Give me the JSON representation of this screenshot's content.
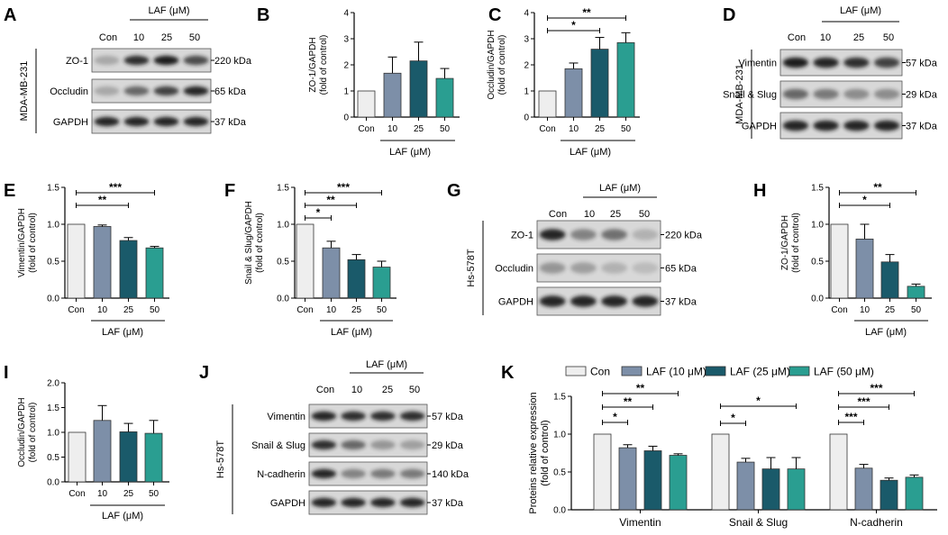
{
  "colors": {
    "con": "#eeeeee",
    "laf10": "#7d8fa8",
    "laf25": "#1a5a6a",
    "laf50": "#2a9e91",
    "blot_bg": "#d8d8d8",
    "band": "#1a1a1a"
  },
  "panels": {
    "A": {
      "letter": "A",
      "cell_line": "MDA-MB-231",
      "header": "LAF (μM)",
      "lanes": [
        "Con",
        "10",
        "25",
        "50"
      ],
      "rows": [
        {
          "label": "ZO-1",
          "kda": "220 kDa",
          "intensity": [
            0.25,
            0.9,
            1.0,
            0.75
          ]
        },
        {
          "label": "Occludin",
          "kda": "65 kDa",
          "intensity": [
            0.25,
            0.6,
            0.8,
            0.95
          ]
        },
        {
          "label": "GAPDH",
          "kda": "37 kDa",
          "intensity": [
            0.95,
            0.95,
            0.95,
            0.95
          ]
        }
      ]
    },
    "B": {
      "letter": "B"
    },
    "C": {
      "letter": "C"
    },
    "D": {
      "letter": "D",
      "cell_line": "MDA-MB-231",
      "header": "LAF (μM)",
      "lanes": [
        "Con",
        "10",
        "25",
        "50"
      ],
      "rows": [
        {
          "label": "Vimentin",
          "kda": "57 kDa",
          "intensity": [
            1.0,
            0.95,
            0.9,
            0.8
          ]
        },
        {
          "label": "Snail & Slug",
          "kda": "29 kDa",
          "intensity": [
            0.6,
            0.5,
            0.4,
            0.4
          ]
        },
        {
          "label": "GAPDH",
          "kda": "37 kDa",
          "intensity": [
            0.95,
            0.95,
            0.95,
            0.95
          ]
        }
      ]
    },
    "E": {
      "letter": "E"
    },
    "F": {
      "letter": "F"
    },
    "G": {
      "letter": "G",
      "cell_line": "Hs-578T",
      "header": "LAF (μM)",
      "lanes": [
        "Con",
        "10",
        "25",
        "50"
      ],
      "rows": [
        {
          "label": "ZO-1",
          "kda": "220 kDa",
          "intensity": [
            0.95,
            0.45,
            0.55,
            0.2
          ]
        },
        {
          "label": "Occludin",
          "kda": "65 kDa",
          "intensity": [
            0.35,
            0.3,
            0.2,
            0.15
          ]
        },
        {
          "label": "GAPDH",
          "kda": "37 kDa",
          "intensity": [
            0.95,
            0.95,
            0.95,
            0.95
          ]
        }
      ]
    },
    "H": {
      "letter": "H"
    },
    "I": {
      "letter": "I"
    },
    "J": {
      "letter": "J",
      "cell_line": "Hs-578T",
      "header": "LAF (μM)",
      "lanes": [
        "Con",
        "10",
        "25",
        "50"
      ],
      "rows": [
        {
          "label": "Vimentin",
          "kda": "57 kDa",
          "intensity": [
            0.95,
            0.9,
            0.9,
            0.9
          ]
        },
        {
          "label": "Snail & Slug",
          "kda": "29 kDa",
          "intensity": [
            0.9,
            0.6,
            0.35,
            0.3
          ]
        },
        {
          "label": "N-cadherin",
          "kda": "140 kDa",
          "intensity": [
            0.95,
            0.45,
            0.5,
            0.5
          ]
        },
        {
          "label": "GAPDH",
          "kda": "37 kDa",
          "intensity": [
            0.95,
            0.95,
            0.95,
            0.95
          ]
        }
      ]
    },
    "K": {
      "letter": "K"
    }
  },
  "chart_data": [
    {
      "id": "B",
      "type": "bar",
      "categories": [
        "Con",
        "10",
        "25",
        "50"
      ],
      "values": [
        1.0,
        1.68,
        2.15,
        1.48
      ],
      "errors": [
        0,
        0.62,
        0.72,
        0.38
      ],
      "ylabel": "ZO-1/GAPDH\n(fold of control)",
      "xlabel": "LAF (μM)",
      "ylim": [
        0,
        4
      ],
      "yticks": [
        "0",
        "1",
        "2",
        "3",
        "4"
      ],
      "significance": []
    },
    {
      "id": "C",
      "type": "bar",
      "categories": [
        "Con",
        "10",
        "25",
        "50"
      ],
      "values": [
        1.0,
        1.85,
        2.6,
        2.85
      ],
      "errors": [
        0,
        0.22,
        0.45,
        0.38
      ],
      "ylabel": "Occludin/GAPDH\n(fold of control)",
      "xlabel": "LAF (μM)",
      "ylim": [
        0,
        4
      ],
      "yticks": [
        "0",
        "1",
        "2",
        "3",
        "4"
      ],
      "significance": [
        {
          "from": 0,
          "to": 2,
          "label": "*"
        },
        {
          "from": 0,
          "to": 3,
          "label": "**"
        }
      ]
    },
    {
      "id": "E",
      "type": "bar",
      "categories": [
        "Con",
        "10",
        "25",
        "50"
      ],
      "values": [
        1.0,
        0.97,
        0.78,
        0.68
      ],
      "errors": [
        0,
        0.02,
        0.04,
        0.02
      ],
      "ylabel": "Vimentin/GAPDH\n(fold of control)",
      "xlabel": "LAF (μM)",
      "ylim": [
        0,
        1.5
      ],
      "yticks": [
        "0.0",
        "0.5",
        "1.0",
        "1.5"
      ],
      "significance": [
        {
          "from": 0,
          "to": 2,
          "label": "**"
        },
        {
          "from": 0,
          "to": 3,
          "label": "***"
        }
      ]
    },
    {
      "id": "F",
      "type": "bar",
      "categories": [
        "Con",
        "10",
        "25",
        "50"
      ],
      "values": [
        1.0,
        0.68,
        0.52,
        0.42
      ],
      "errors": [
        0,
        0.09,
        0.07,
        0.08
      ],
      "ylabel": "Snail & Slug/GAPDH\n(fold of control)",
      "xlabel": "LAF (μM)",
      "ylim": [
        0,
        1.5
      ],
      "yticks": [
        "0.0",
        "0.5",
        "1.0",
        "1.5"
      ],
      "significance": [
        {
          "from": 0,
          "to": 1,
          "label": "*"
        },
        {
          "from": 0,
          "to": 2,
          "label": "**"
        },
        {
          "from": 0,
          "to": 3,
          "label": "***"
        }
      ]
    },
    {
      "id": "H",
      "type": "bar",
      "categories": [
        "Con",
        "10",
        "25",
        "50"
      ],
      "values": [
        1.0,
        0.8,
        0.49,
        0.16
      ],
      "errors": [
        0,
        0.2,
        0.1,
        0.03
      ],
      "ylabel": "ZO-1/GAPDH\n(fold of control)",
      "xlabel": "LAF (μM)",
      "ylim": [
        0,
        1.5
      ],
      "yticks": [
        "0.0",
        "0.5",
        "1.0",
        "1.5"
      ],
      "significance": [
        {
          "from": 0,
          "to": 2,
          "label": "*"
        },
        {
          "from": 0,
          "to": 3,
          "label": "**"
        }
      ]
    },
    {
      "id": "I",
      "type": "bar",
      "categories": [
        "Con",
        "10",
        "25",
        "50"
      ],
      "values": [
        1.0,
        1.24,
        1.01,
        0.98
      ],
      "errors": [
        0,
        0.3,
        0.17,
        0.26
      ],
      "ylabel": "Occludin/GAPDH\n(fold of control)",
      "xlabel": "LAF (μM)",
      "ylim": [
        0,
        2.0
      ],
      "yticks": [
        "0.0",
        "0.5",
        "1.0",
        "1.5",
        "2.0"
      ],
      "significance": []
    },
    {
      "id": "K",
      "type": "bar",
      "categories": [
        "Vimentin",
        "Snail & Slug",
        "N-cadherin"
      ],
      "series": [
        {
          "name": "Con",
          "values": [
            1.0,
            1.0,
            1.0
          ],
          "errors": [
            0,
            0,
            0
          ]
        },
        {
          "name": "LAF (10 μM)",
          "values": [
            0.82,
            0.63,
            0.55
          ],
          "errors": [
            0.04,
            0.05,
            0.05
          ]
        },
        {
          "name": "LAF (25 μM)",
          "values": [
            0.78,
            0.54,
            0.39
          ],
          "errors": [
            0.06,
            0.15,
            0.03
          ]
        },
        {
          "name": "LAF (50 μM)",
          "values": [
            0.72,
            0.54,
            0.43
          ],
          "errors": [
            0.02,
            0.15,
            0.03
          ]
        }
      ],
      "ylabel": "Proteins relative expression\n(fold of control)",
      "ylim": [
        0,
        1.5
      ],
      "yticks": [
        "0.0",
        "0.5",
        "1.0",
        "1.5"
      ],
      "legend": "top",
      "significance": [
        {
          "group": 0,
          "from": 0,
          "to": 1,
          "label": "*"
        },
        {
          "group": 0,
          "from": 0,
          "to": 2,
          "label": "**"
        },
        {
          "group": 0,
          "from": 0,
          "to": 3,
          "label": "**"
        },
        {
          "group": 1,
          "from": 0,
          "to": 1,
          "label": "*"
        },
        {
          "group": 1,
          "from": 0,
          "to": 3,
          "label": "*"
        },
        {
          "group": 2,
          "from": 0,
          "to": 1,
          "label": "***"
        },
        {
          "group": 2,
          "from": 0,
          "to": 2,
          "label": "***"
        },
        {
          "group": 2,
          "from": 0,
          "to": 3,
          "label": "***"
        }
      ]
    }
  ]
}
